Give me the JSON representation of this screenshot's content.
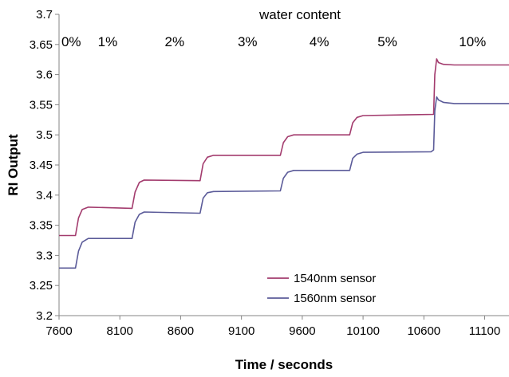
{
  "chart_data": {
    "type": "line",
    "title": "",
    "xlabel": "Time / seconds",
    "ylabel": "RI Output",
    "xlim": [
      7600,
      11300
    ],
    "ylim": [
      3.2,
      3.7
    ],
    "x_ticks": [
      7600,
      8100,
      8600,
      9100,
      9600,
      10100,
      10600,
      11100
    ],
    "y_ticks": [
      "3.7",
      "3.65",
      "3.6",
      "3.55",
      "3.5",
      "3.45",
      "3.4",
      "3.35",
      "3.3",
      "3.25",
      "3.2"
    ],
    "grid": false,
    "legend_position": "bottom-center",
    "annotation_header": "water content",
    "annotations": [
      {
        "text": "0%",
        "x": 7700
      },
      {
        "text": "1%",
        "x": 8000
      },
      {
        "text": "2%",
        "x": 8550
      },
      {
        "text": "3%",
        "x": 9150
      },
      {
        "text": "4%",
        "x": 9740
      },
      {
        "text": "5%",
        "x": 10300
      },
      {
        "text": "10%",
        "x": 11000
      }
    ],
    "series": [
      {
        "name": "1540nm sensor",
        "color": "#a33c6e",
        "x": [
          7600,
          7735,
          7760,
          7790,
          7840,
          8200,
          8225,
          8260,
          8300,
          8760,
          8785,
          8820,
          8870,
          9420,
          9445,
          9480,
          9530,
          9990,
          10015,
          10050,
          10100,
          10680,
          10690,
          10705,
          10720,
          10760,
          10850,
          11300
        ],
        "values": [
          3.333,
          3.333,
          3.362,
          3.376,
          3.38,
          3.378,
          3.405,
          3.421,
          3.425,
          3.424,
          3.452,
          3.463,
          3.466,
          3.466,
          3.487,
          3.497,
          3.5,
          3.5,
          3.52,
          3.529,
          3.532,
          3.534,
          3.6,
          3.626,
          3.62,
          3.617,
          3.616,
          3.616
        ]
      },
      {
        "name": "1560nm sensor",
        "color": "#5b5b99",
        "x": [
          7600,
          7735,
          7760,
          7790,
          7840,
          8200,
          8225,
          8260,
          8300,
          8760,
          8785,
          8820,
          8870,
          9420,
          9445,
          9480,
          9530,
          9990,
          10015,
          10050,
          10100,
          10660,
          10680,
          10690,
          10705,
          10720,
          10760,
          10850,
          11300
        ],
        "values": [
          3.279,
          3.279,
          3.307,
          3.322,
          3.328,
          3.328,
          3.355,
          3.368,
          3.372,
          3.37,
          3.395,
          3.404,
          3.406,
          3.407,
          3.428,
          3.438,
          3.441,
          3.441,
          3.461,
          3.468,
          3.471,
          3.472,
          3.475,
          3.54,
          3.563,
          3.558,
          3.554,
          3.552,
          3.552
        ]
      }
    ]
  }
}
